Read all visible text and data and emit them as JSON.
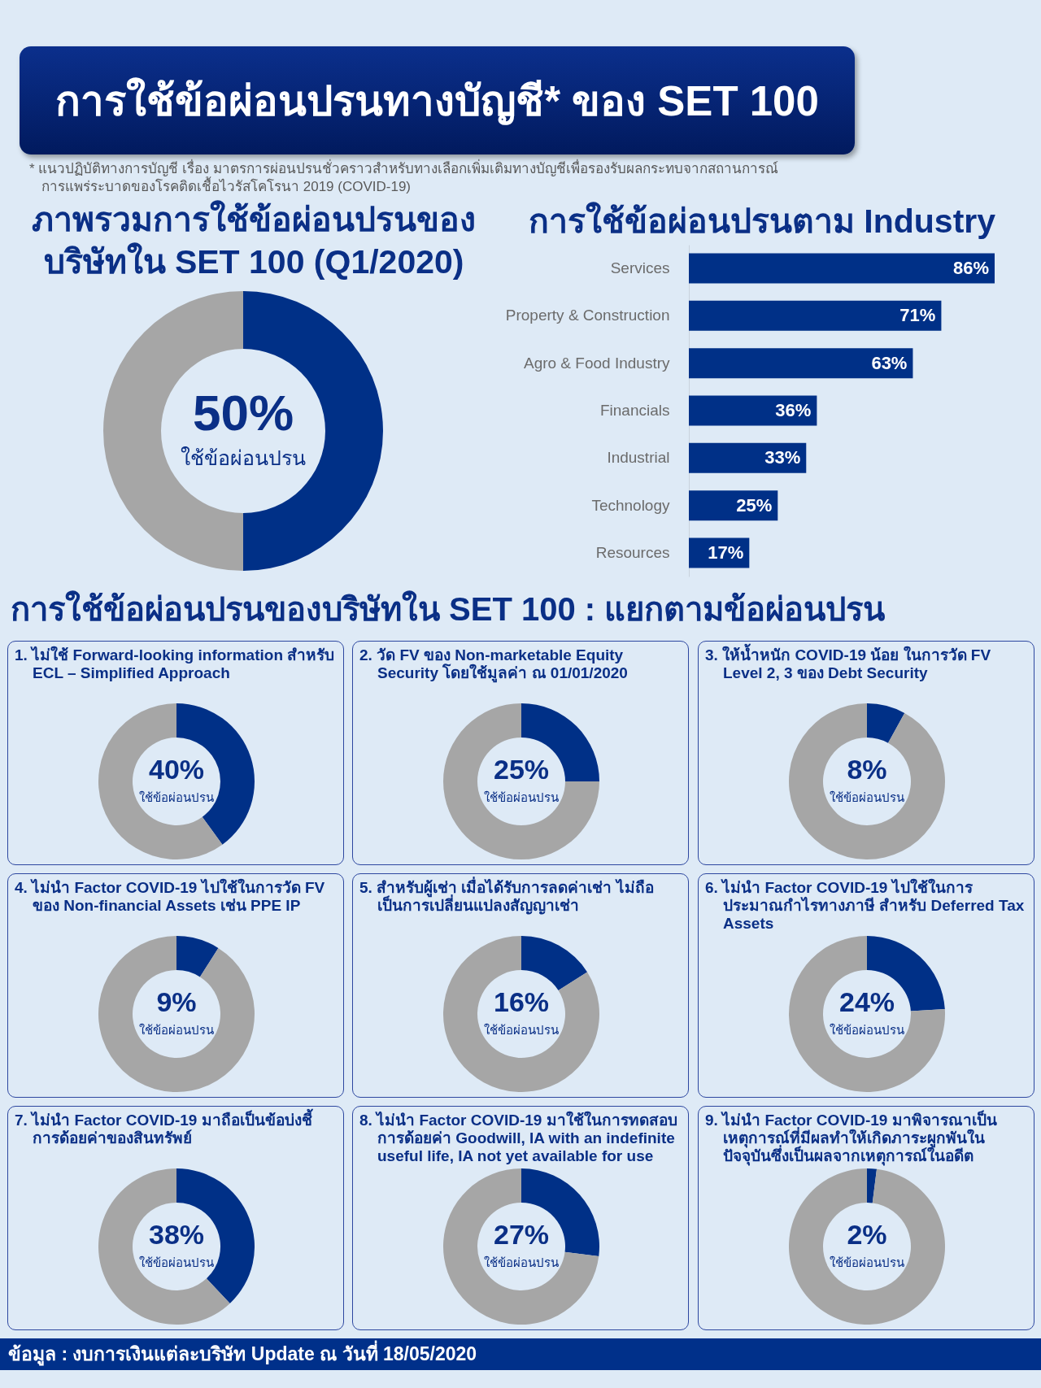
{
  "chart_data": [
    {
      "type": "other",
      "title": "การใช้ข้อผ่อนปรนทางบัญชี* ของ SET 100",
      "annotations": [
        "* แนวปฏิบัติทางการบัญชี เรื่อง มาตรการผ่อนปรนชั่วคราวสำหรับทางเลือกเพิ่มเติมทางบัญชีเพื่อรองรับผลกระทบจากสถานการณ์การแพร่ระบาดของโรคติดเชื้อไวรัสโคโรนา 2019 (COVID-19)"
      ]
    },
    {
      "type": "donut",
      "title": "ภาพรวมการใช้ข้อผ่อนปรนของบริษัทใน SET 100 (Q1/2020)",
      "categories": [
        "ใช้ข้อผ่อนปรน",
        null
      ],
      "values": [
        50,
        50
      ],
      "colors": [
        "#003087",
        "#a6a6a6"
      ],
      "value_labels": [
        "50%",
        null
      ]
    },
    {
      "type": "bar",
      "orientation": "horizontal",
      "title": "การใช้ข้อผ่อนปรนตาม Industry",
      "categories": [
        "Services",
        "Property & Construction",
        "Agro & Food Industry",
        "Financials",
        "Industrial",
        "Technology",
        "Resources"
      ],
      "values": [
        86,
        71,
        63,
        36,
        33,
        25,
        17
      ],
      "color": "#003087",
      "value_labels": [
        "86%",
        "71%",
        "63%",
        "36%",
        "33%",
        "25%",
        "17%"
      ],
      "tick_labels": "y"
    },
    {
      "type": "other",
      "title": "การใช้ข้อผ่อนปรนของบริษัทใน SET 100 : แยกตามข้อผ่อนปรน"
    },
    {
      "type": "donut",
      "title": "1. ไม่ใช้ Forward-looking information สำหรับ ECL – Simplified Approach",
      "categories": [
        "ใช้ข้อผ่อนปรน",
        null
      ],
      "values": [
        40,
        60
      ],
      "colors": [
        "#003087",
        "#a6a6a6"
      ],
      "value_labels": [
        "40%",
        null
      ]
    },
    {
      "type": "donut",
      "title": "2. วัด FV ของ Non-marketable Equity Security โดยใช้มูลค่า ณ 01/01/2020",
      "categories": [
        "ใช้ข้อผ่อนปรน",
        null
      ],
      "values": [
        25,
        75
      ],
      "colors": [
        "#003087",
        "#a6a6a6"
      ],
      "value_labels": [
        "25%",
        null
      ]
    },
    {
      "type": "donut",
      "title": "3. ให้น้ำหนัก COVID-19 น้อย ในการวัด FV Level 2, 3 ของ Debt Security",
      "categories": [
        "ใช้ข้อผ่อนปรน",
        null
      ],
      "values": [
        8,
        92
      ],
      "colors": [
        "#003087",
        "#a6a6a6"
      ],
      "value_labels": [
        "8%",
        null
      ]
    },
    {
      "type": "donut",
      "title": "4. ไม่นำ Factor COVID-19 ไปใช้ในการวัด FV ของ Non-financial Assets เช่น PPE IP",
      "categories": [
        "ใช้ข้อผ่อนปรน",
        null
      ],
      "values": [
        9,
        91
      ],
      "colors": [
        "#003087",
        "#a6a6a6"
      ],
      "value_labels": [
        "9%",
        null
      ]
    },
    {
      "type": "donut",
      "title": "5. สำหรับผู้เช่า เมื่อได้รับการลดค่าเช่า ไม่ถือเป็นการเปลี่ยนแปลงสัญญาเช่า",
      "categories": [
        "ใช้ข้อผ่อนปรน",
        null
      ],
      "values": [
        16,
        84
      ],
      "colors": [
        "#003087",
        "#a6a6a6"
      ],
      "value_labels": [
        "16%",
        null
      ]
    },
    {
      "type": "donut",
      "title": "6. ไม่นำ Factor COVID-19 ไปใช้ในการประมาณกำไรทางภาษี สำหรับ Deferred Tax Assets",
      "categories": [
        "ใช้ข้อผ่อนปรน",
        null
      ],
      "values": [
        24,
        76
      ],
      "colors": [
        "#003087",
        "#a6a6a6"
      ],
      "value_labels": [
        "24%",
        null
      ]
    },
    {
      "type": "donut",
      "title": "7. ไม่นำ Factor COVID-19 มาถือเป็นข้อบ่งชี้การด้อยค่าของสินทรัพย์",
      "categories": [
        "ใช้ข้อผ่อนปรน",
        null
      ],
      "values": [
        38,
        62
      ],
      "colors": [
        "#003087",
        "#a6a6a6"
      ],
      "value_labels": [
        "38%",
        null
      ]
    },
    {
      "type": "donut",
      "title": "8. ไม่นำ Factor COVID-19 มาใช้ในการทดสอบการด้อยค่า Goodwill, IA with an indefinite useful life, IA not yet available for use",
      "categories": [
        "ใช้ข้อผ่อนปรน",
        null
      ],
      "values": [
        27,
        73
      ],
      "colors": [
        "#003087",
        "#a6a6a6"
      ],
      "value_labels": [
        "27%",
        null
      ]
    },
    {
      "type": "donut",
      "title": "9. ไม่นำ Factor COVID-19 มาพิจารณาเป็นเหตุการณ์ที่มีผลทำให้เกิดภาระผูกพันในปัจจุบันซึ่งเป็นผลจากเหตุการณ์ในอดีต",
      "categories": [
        "ใช้ข้อผ่อนปรน",
        null
      ],
      "values": [
        2,
        98
      ],
      "colors": [
        "#003087",
        "#a6a6a6"
      ],
      "value_labels": [
        "2%",
        null
      ]
    },
    {
      "type": "other",
      "annotations": [
        "ข้อมูล : งบการเงินแต่ละบริษัท Update ณ วันที่ 18/05/2020"
      ]
    }
  ]
}
